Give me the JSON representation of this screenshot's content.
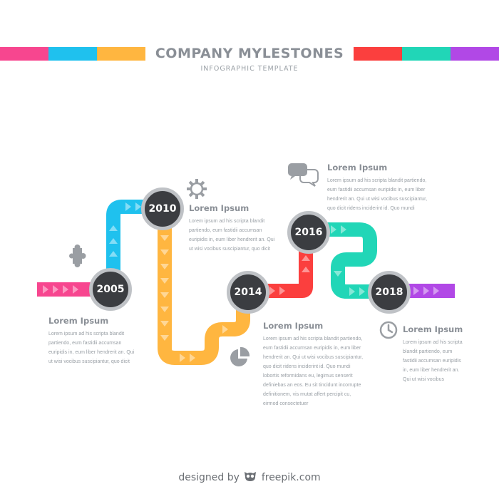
{
  "header": {
    "title": "COMPANY MYLESTONES",
    "subtitle": "INFOGRAPHIC TEMPLATE"
  },
  "colors": {
    "pink": "#f7468f",
    "cyan": "#1fc1ee",
    "orange": "#ffb640",
    "red": "#fb3f3e",
    "teal": "#21d6b7",
    "purple": "#b148e6",
    "node": "#3b3d41",
    "node_ring": "#bfc2c6"
  },
  "milestones": [
    {
      "year": "2005",
      "heading": "Lorem Ipsum",
      "lines": [
        "Lorem ipsum ad his scripta blandit",
        "partiendo, eum fastidii accumsan",
        "euripidis in, eum liber hendrerit an. Qui",
        "ut wisi vocibus suscipiantur, quo dicit"
      ]
    },
    {
      "year": "2010",
      "heading": "Lorem Ipsum",
      "lines": [
        "Lorem ipsum ad his scripta blandit",
        "partiendo, eum fastidii accumsan",
        "euripidis in, eum liber hendrerit an. Qui",
        "ut wisi vocibus suscipiantur, quo dicit"
      ]
    },
    {
      "year": "2014",
      "heading": "Lorem Ipsum",
      "lines": [
        "Lorem ipsum ad his scripta blandit partiendo,",
        "eum fastidii accumsan euripidis in, eum liber",
        "hendrerit an. Qui ut wisi vocibus suscipiantur,",
        "quo dicit ridens inciderint id. Quo mundi",
        "lobortis reformidans eu, legimus senserit",
        "definiebas an eos. Eu sit tincidunt incorrupte",
        "definitionem, vis mutat affert percipit cu,",
        "eirmod consectetuer"
      ]
    },
    {
      "year": "2016",
      "heading": "Lorem Ipsum",
      "lines": [
        "Lorem ipsum ad his scripta blandit partiendo,",
        "eum fastidii accumsan euripidis in, eum liber",
        "hendrerit an. Qui ut wisi vocibus suscipiantur,",
        "quo dicit ridens inciderint id. Quo mundi"
      ]
    },
    {
      "year": "2018",
      "heading": "Lorem Ipsum",
      "lines": [
        "Lorem ipsum ad his scripta",
        "blandit partiendo, eum",
        "fastidii accumsan euripidis",
        "in, eum liber hendrerit an.",
        "Qui ut wisi vocibus"
      ]
    }
  ],
  "icons": [
    "puzzle-icon",
    "gear-icon",
    "chat-bubbles-icon",
    "pie-chart-icon",
    "clock-icon",
    "freepik-owl-icon"
  ],
  "footer": {
    "left": "designed by",
    "right": "freepik.com"
  }
}
